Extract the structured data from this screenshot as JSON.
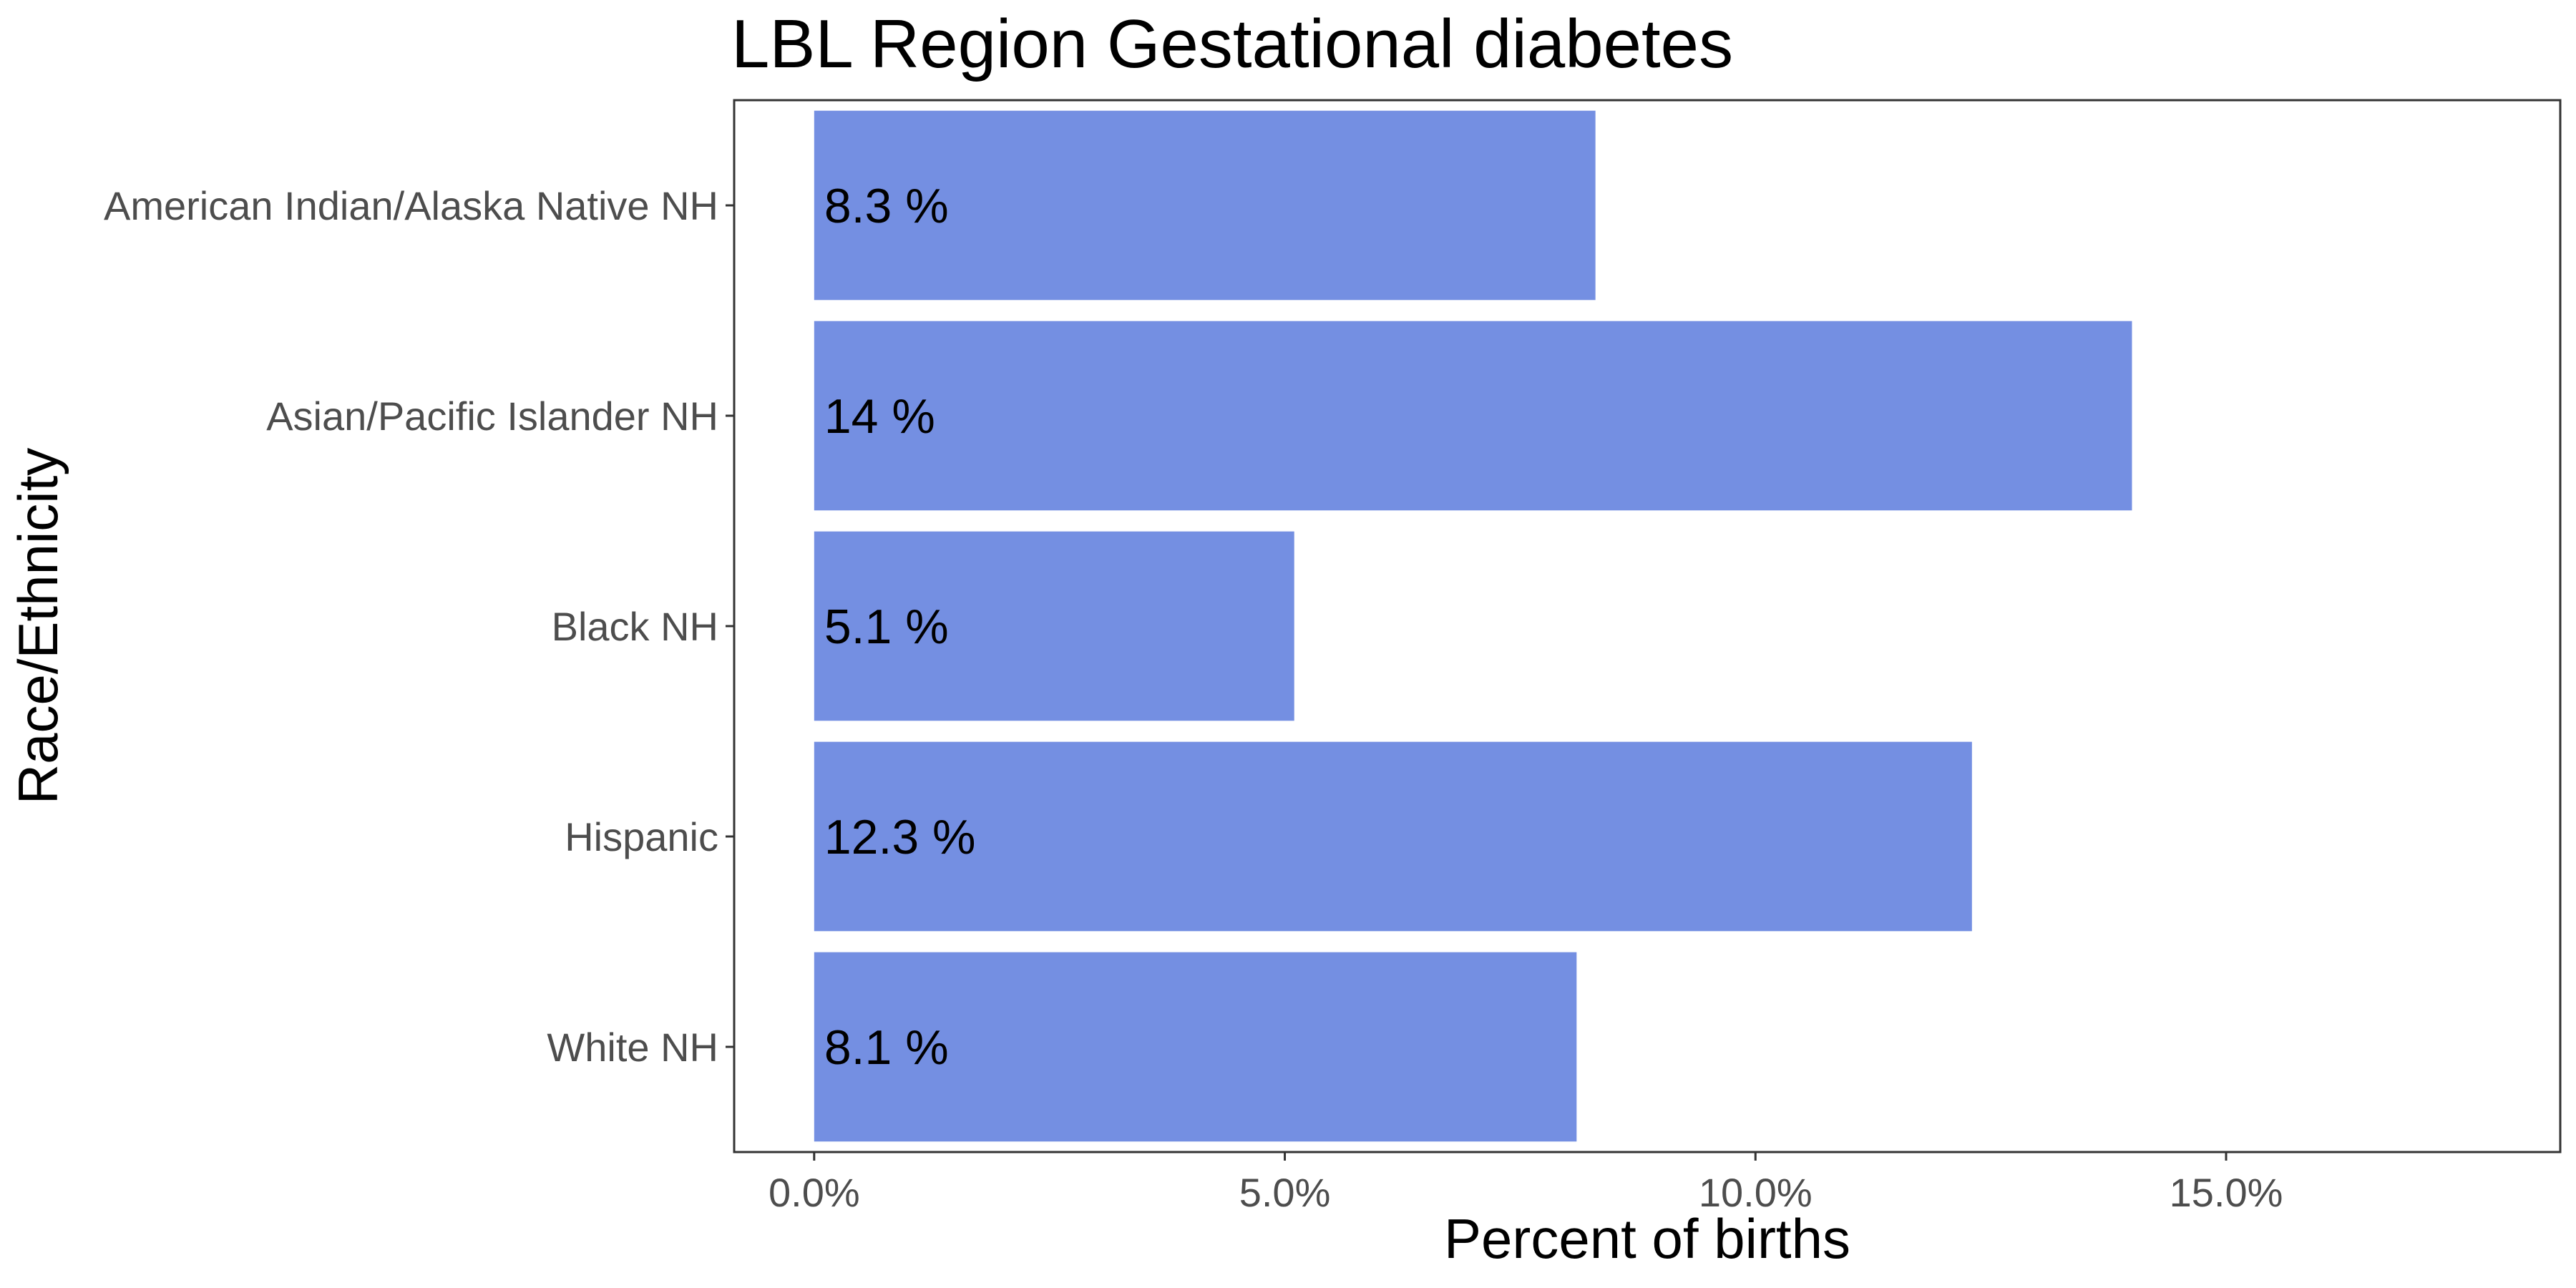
{
  "chart_data": {
    "type": "bar",
    "orientation": "horizontal",
    "title": "LBL Region Gestational diabetes",
    "xlabel": "Percent of births",
    "ylabel": "Race/Ethnicity",
    "categories": [
      "American Indian/Alaska Native NH",
      "Asian/Pacific Islander NH",
      "Black NH",
      "Hispanic",
      "White NH"
    ],
    "values": [
      8.3,
      14.0,
      5.1,
      12.3,
      8.1
    ],
    "data_labels": [
      "8.3 %",
      "14 %",
      "5.1 %",
      "12.3 %",
      "8.1 %"
    ],
    "xlim": [
      -0.85,
      18.55
    ],
    "xticks": [
      0,
      5,
      10,
      15
    ],
    "xtick_labels": [
      "0.0%",
      "5.0%",
      "10.0%",
      "15.0%"
    ],
    "bar_color": "#748FE2",
    "grid": false,
    "legend": "none"
  }
}
